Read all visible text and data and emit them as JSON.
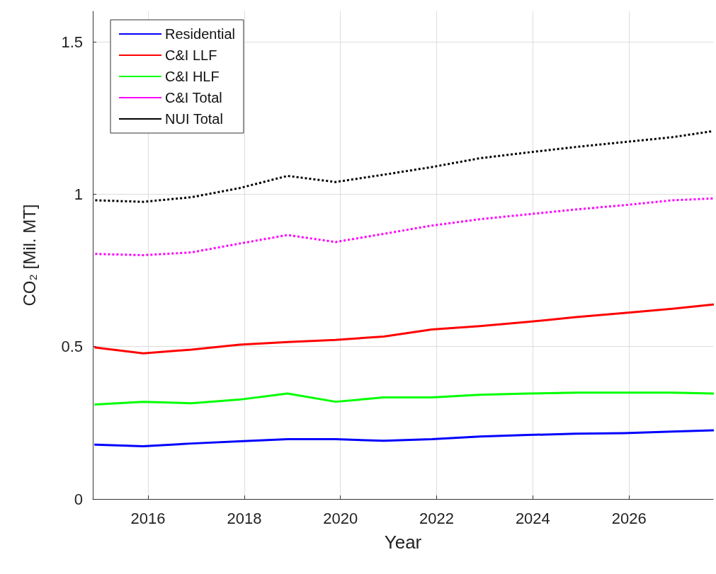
{
  "chart_data": {
    "type": "line",
    "xlabel": "Year",
    "ylabel": "CO₂ [Mil. MT]",
    "x": [
      2014.9,
      2015.9,
      2016.9,
      2017.9,
      2018.9,
      2019.9,
      2020.9,
      2021.9,
      2022.9,
      2023.9,
      2024.9,
      2025.9,
      2026.9,
      2027.75
    ],
    "xlim": [
      2014.85,
      2027.75
    ],
    "xticks": [
      2016,
      2018,
      2020,
      2022,
      2024,
      2026
    ],
    "ylim": [
      0,
      1.6
    ],
    "yticks": [
      0,
      0.5,
      1,
      1.5
    ],
    "grid": true,
    "legend": "top left",
    "marker": "none",
    "series": [
      {
        "name": "Residential",
        "color": "#0000ff",
        "line_style": "solid",
        "values": [
          0.178,
          0.173,
          0.182,
          0.189,
          0.196,
          0.196,
          0.191,
          0.196,
          0.205,
          0.21,
          0.214,
          0.216,
          0.221,
          0.225
        ]
      },
      {
        "name": "C&I LLF",
        "color": "#ff0000",
        "line_style": "solid",
        "values": [
          0.497,
          0.478,
          0.49,
          0.506,
          0.515,
          0.522,
          0.533,
          0.556,
          0.567,
          0.581,
          0.597,
          0.61,
          0.624,
          0.638
        ]
      },
      {
        "name": "C&I HLF",
        "color": "#00ff00",
        "line_style": "solid",
        "values": [
          0.31,
          0.319,
          0.314,
          0.326,
          0.346,
          0.319,
          0.333,
          0.333,
          0.342,
          0.346,
          0.349,
          0.349,
          0.349,
          0.346
        ]
      },
      {
        "name": "C&I Total",
        "color": "#ff00ff",
        "line_style": "dotted",
        "values": [
          0.804,
          0.8,
          0.809,
          0.838,
          0.866,
          0.843,
          0.87,
          0.897,
          0.918,
          0.934,
          0.95,
          0.964,
          0.98,
          0.986
        ]
      },
      {
        "name": "NUI Total",
        "color": "#000000",
        "line_style": "dotted",
        "values": [
          0.98,
          0.975,
          0.99,
          1.02,
          1.06,
          1.04,
          1.064,
          1.089,
          1.118,
          1.137,
          1.155,
          1.171,
          1.187,
          1.207
        ]
      }
    ]
  }
}
